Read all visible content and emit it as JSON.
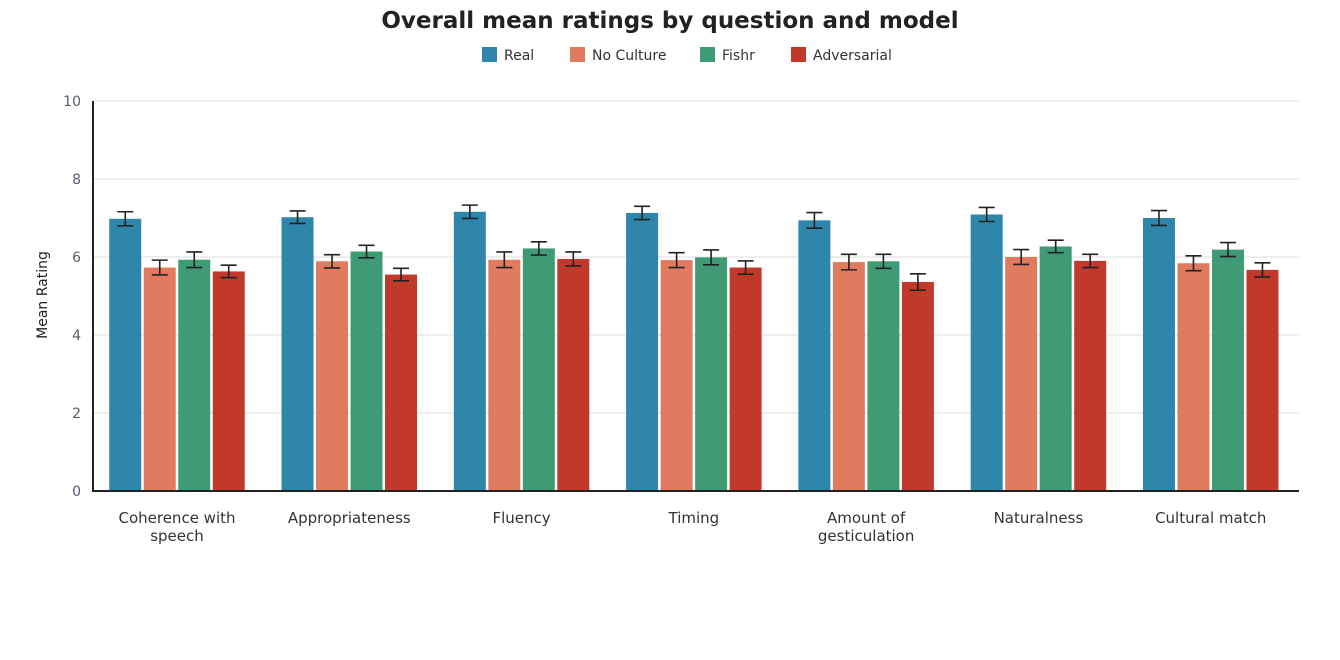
{
  "chart_data": {
    "type": "bar",
    "title": "Overall mean ratings by question and model",
    "ylabel": "Mean Rating",
    "xlabel": "",
    "ylim": [
      0,
      10
    ],
    "yticks": [
      0,
      2,
      4,
      6,
      8,
      10
    ],
    "grid": true,
    "legend_position": "top-center",
    "categories": [
      "Coherence with speech",
      "Appropriateness",
      "Fluency",
      "Timing",
      "Amount of gesticulation",
      "Naturalness",
      "Cultural match"
    ],
    "series": [
      {
        "name": "Real",
        "color": "#2e86ab",
        "values": [
          6.98,
          7.02,
          7.16,
          7.13,
          6.94,
          7.09,
          7.0
        ],
        "errors": [
          0.18,
          0.16,
          0.17,
          0.17,
          0.2,
          0.18,
          0.19
        ]
      },
      {
        "name": "No Culture",
        "color": "#e07b5f",
        "values": [
          5.73,
          5.89,
          5.93,
          5.92,
          5.87,
          6.0,
          5.84
        ],
        "errors": [
          0.19,
          0.17,
          0.2,
          0.19,
          0.2,
          0.19,
          0.19
        ]
      },
      {
        "name": "Fishr",
        "color": "#3e9b73",
        "values": [
          5.93,
          6.14,
          6.22,
          5.99,
          5.89,
          6.27,
          6.19
        ],
        "errors": [
          0.2,
          0.16,
          0.17,
          0.19,
          0.18,
          0.16,
          0.18
        ]
      },
      {
        "name": "Adversarial",
        "color": "#c0392b",
        "values": [
          5.63,
          5.55,
          5.95,
          5.73,
          5.36,
          5.9,
          5.67
        ],
        "errors": [
          0.16,
          0.16,
          0.18,
          0.17,
          0.21,
          0.17,
          0.18
        ]
      }
    ]
  }
}
